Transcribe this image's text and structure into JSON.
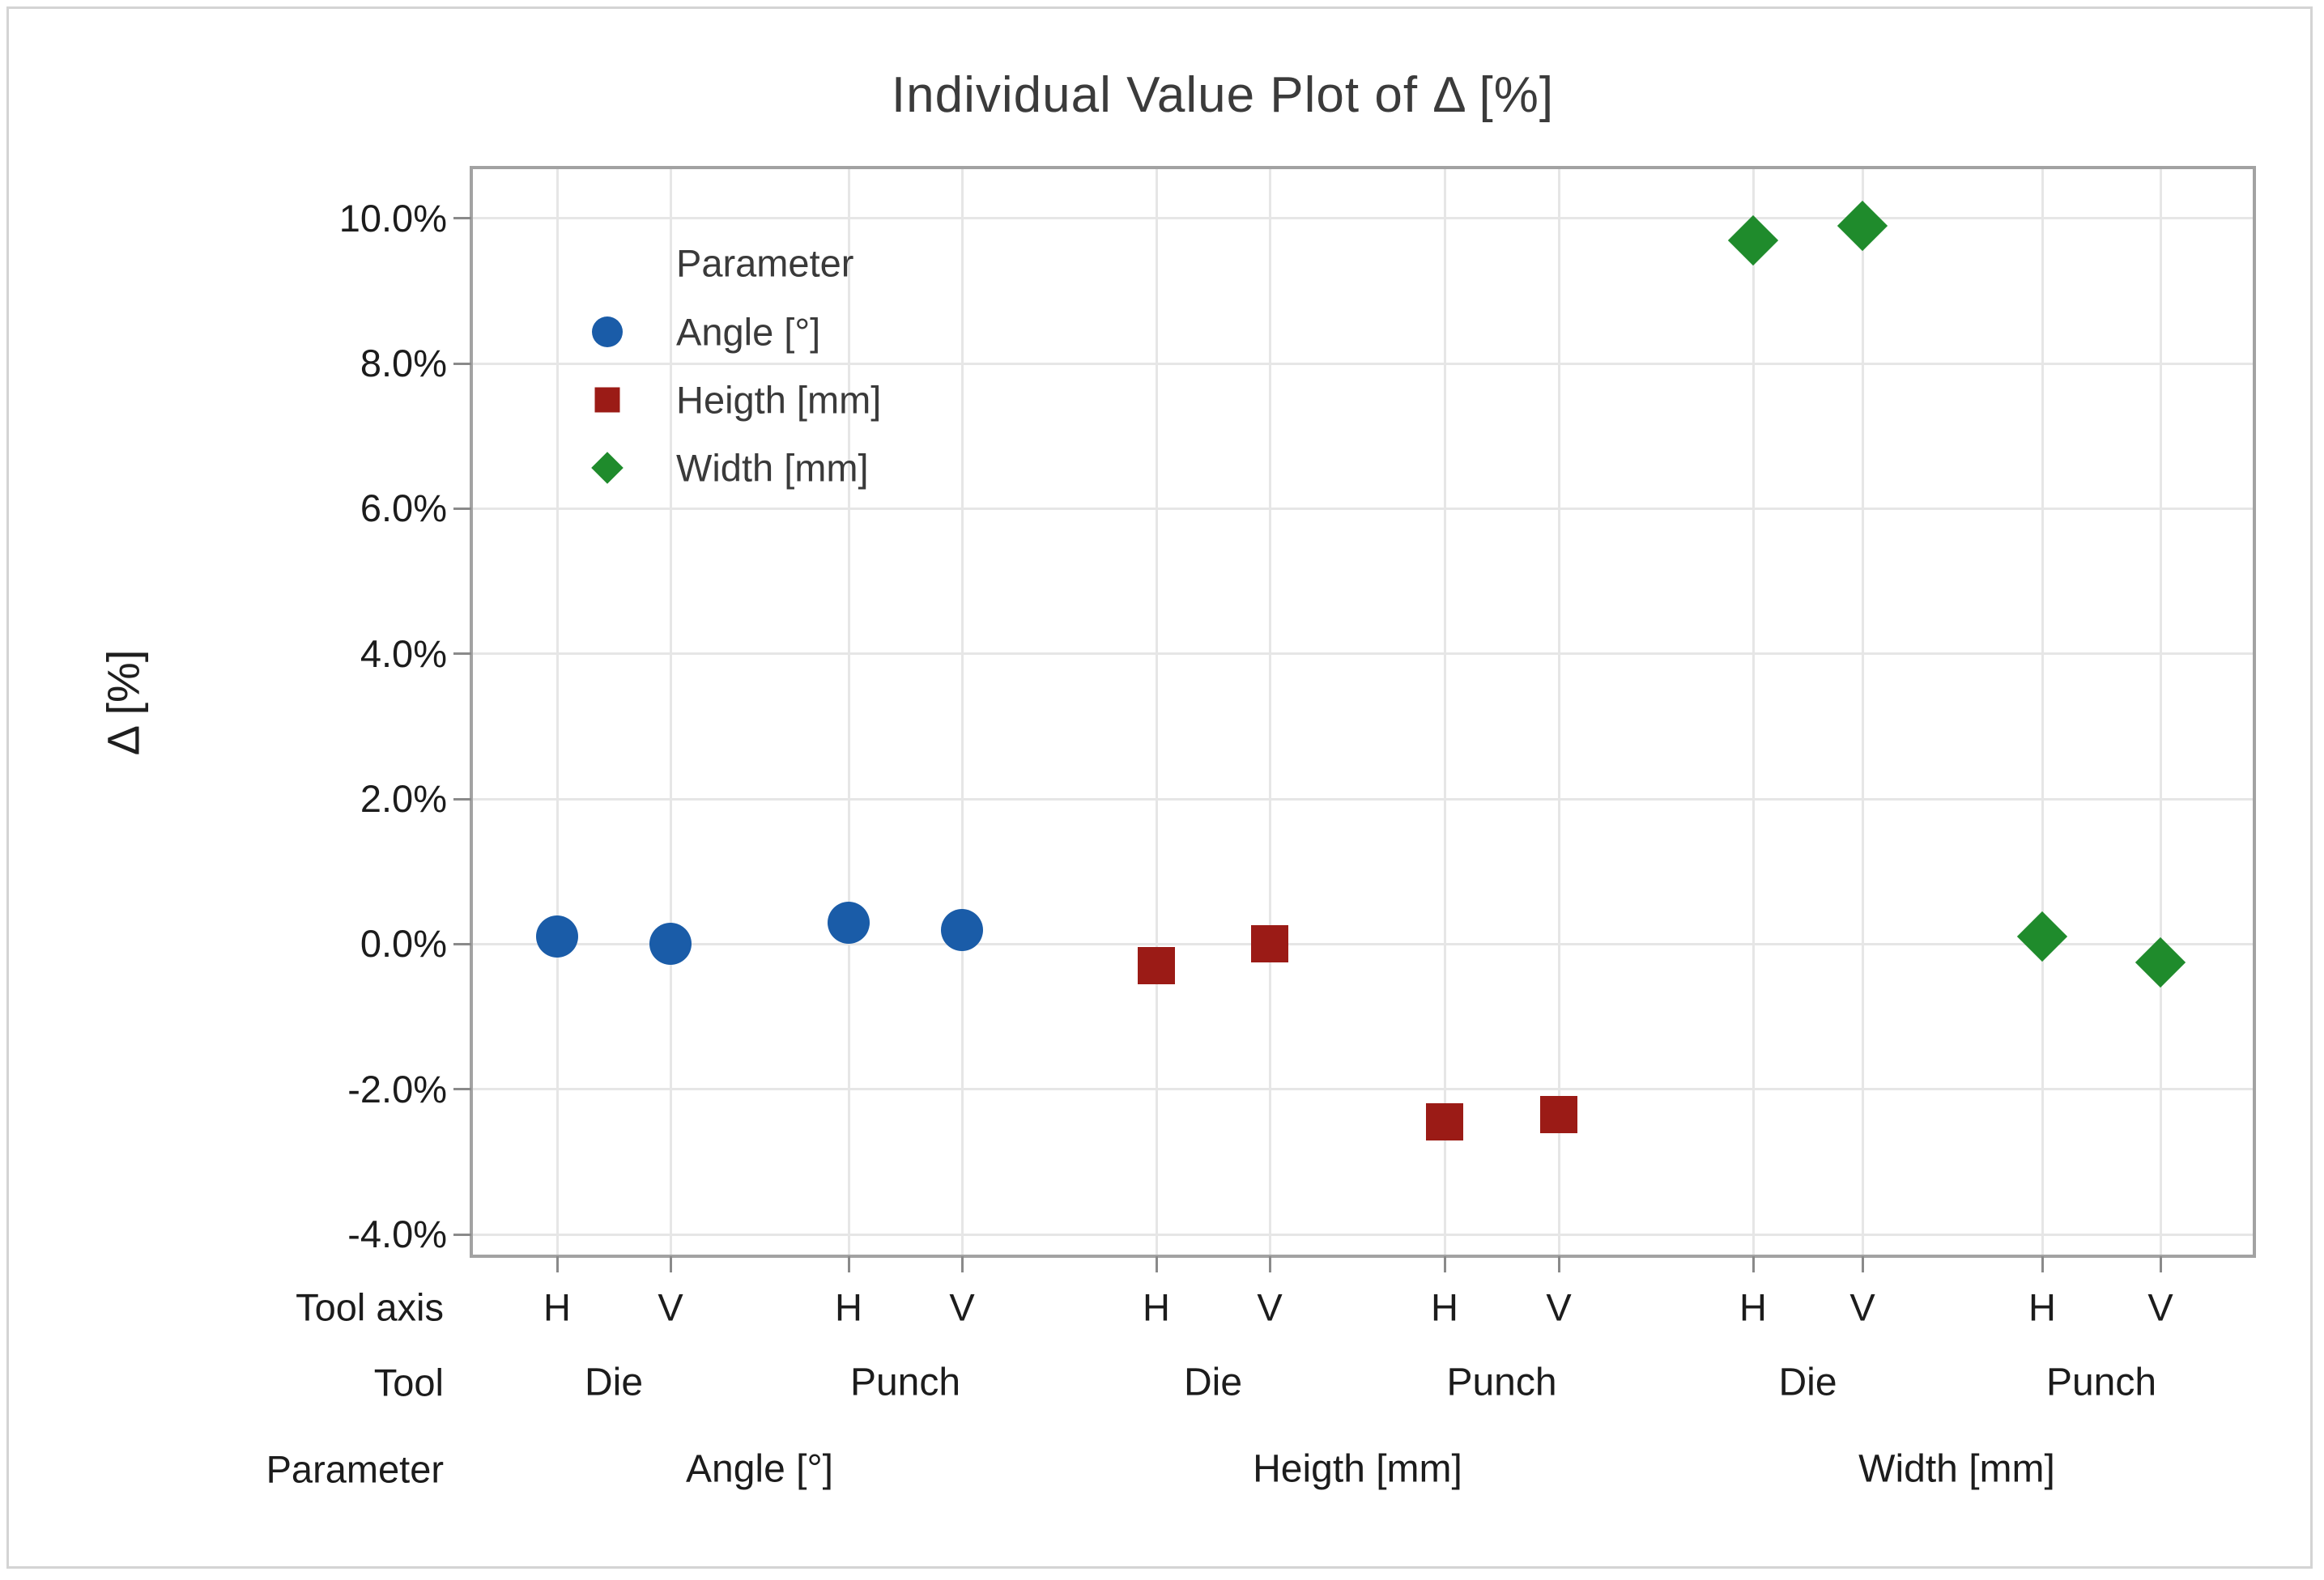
{
  "title": "Individual Value Plot of Δ [%]",
  "y_axis": {
    "label": "Δ [%]",
    "tick_labels": [
      "10.0%",
      "8.0%",
      "6.0%",
      "4.0%",
      "2.0%",
      "0.0%",
      "-2.0%",
      "-4.0%"
    ]
  },
  "x_axis": {
    "row_labels": [
      "Tool axis",
      "Tool",
      "Parameter"
    ]
  },
  "legend": {
    "title": "Parameter",
    "entries": [
      {
        "label": "Angle [°]",
        "shape": "circle",
        "color": "#1A5CA8"
      },
      {
        "label": "Heigth [mm]",
        "shape": "square",
        "color": "#9B1B16"
      },
      {
        "label": "Width [mm]",
        "shape": "diamond",
        "color": "#1F8B2C"
      }
    ]
  },
  "chart_data": {
    "type": "scatter",
    "title": "Individual Value Plot of Δ [%]",
    "ylabel": "Δ [%]",
    "ylim": [
      -4.3,
      10.7
    ],
    "yticks_pct": [
      10,
      8,
      6,
      4,
      2,
      0,
      -2,
      -4
    ],
    "ytick_format": "percent, one decimal",
    "grid": "both",
    "legend_position": "inside top-left",
    "x_hierarchy_rows": [
      "Tool axis",
      "Tool",
      "Parameter"
    ],
    "series": [
      {
        "name": "Angle [°]",
        "marker": "circle",
        "color": "#1A5CA8",
        "points": [
          {
            "tool": "Die",
            "tool_axis": "H",
            "delta_pct": 0.1
          },
          {
            "tool": "Die",
            "tool_axis": "V",
            "delta_pct": 0.0
          },
          {
            "tool": "Punch",
            "tool_axis": "H",
            "delta_pct": 0.3
          },
          {
            "tool": "Punch",
            "tool_axis": "V",
            "delta_pct": 0.2
          }
        ]
      },
      {
        "name": "Heigth [mm]",
        "marker": "square",
        "color": "#9B1B16",
        "points": [
          {
            "tool": "Die",
            "tool_axis": "H",
            "delta_pct": -0.3
          },
          {
            "tool": "Die",
            "tool_axis": "V",
            "delta_pct": 0.0
          },
          {
            "tool": "Punch",
            "tool_axis": "H",
            "delta_pct": -2.45
          },
          {
            "tool": "Punch",
            "tool_axis": "V",
            "delta_pct": -2.35
          }
        ]
      },
      {
        "name": "Width [mm]",
        "marker": "diamond",
        "color": "#1F8B2C",
        "points": [
          {
            "tool": "Die",
            "tool_axis": "H",
            "delta_pct": 9.7
          },
          {
            "tool": "Die",
            "tool_axis": "V",
            "delta_pct": 9.9
          },
          {
            "tool": "Punch",
            "tool_axis": "H",
            "delta_pct": 0.1
          },
          {
            "tool": "Punch",
            "tool_axis": "V",
            "delta_pct": -0.25
          }
        ]
      }
    ]
  }
}
